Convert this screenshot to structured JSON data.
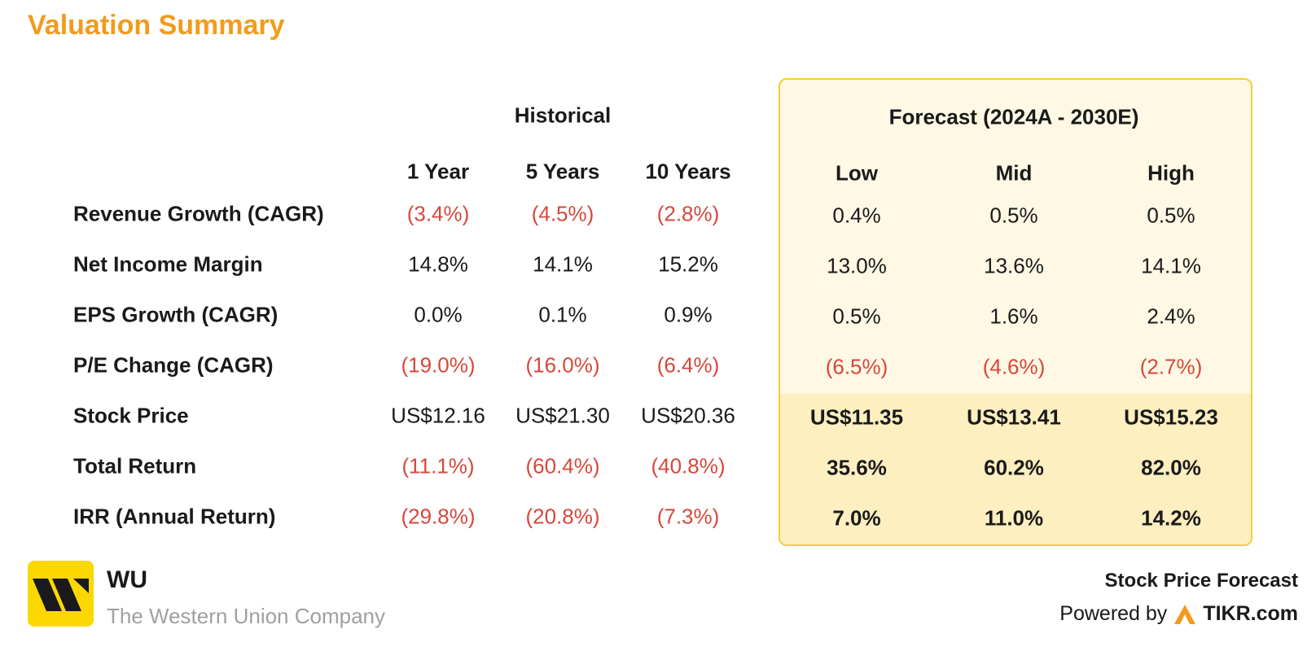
{
  "title": "Valuation Summary",
  "historical": {
    "heading": "Historical",
    "columns": [
      "1 Year",
      "5 Years",
      "10 Years"
    ]
  },
  "forecast": {
    "heading": "Forecast (2024A - 2030E)",
    "columns": [
      "Low",
      "Mid",
      "High"
    ]
  },
  "rows": [
    {
      "label": "Revenue Growth (CAGR)",
      "hist": [
        "(3.4%)",
        "(4.5%)",
        "(2.8%)"
      ],
      "fc": [
        "0.4%",
        "0.5%",
        "0.5%"
      ]
    },
    {
      "label": "Net Income Margin",
      "hist": [
        "14.8%",
        "14.1%",
        "15.2%"
      ],
      "fc": [
        "13.0%",
        "13.6%",
        "14.1%"
      ]
    },
    {
      "label": "EPS Growth (CAGR)",
      "hist": [
        "0.0%",
        "0.1%",
        "0.9%"
      ],
      "fc": [
        "0.5%",
        "1.6%",
        "2.4%"
      ]
    },
    {
      "label": "P/E Change (CAGR)",
      "hist": [
        "(19.0%)",
        "(16.0%)",
        "(6.4%)"
      ],
      "fc": [
        "(6.5%)",
        "(4.6%)",
        "(2.7%)"
      ]
    },
    {
      "label": "Stock Price",
      "hist": [
        "US$12.16",
        "US$21.30",
        "US$20.36"
      ],
      "fc": [
        "US$11.35",
        "US$13.41",
        "US$15.23"
      ]
    },
    {
      "label": "Total Return",
      "hist": [
        "(11.1%)",
        "(60.4%)",
        "(40.8%)"
      ],
      "fc": [
        "35.6%",
        "60.2%",
        "82.0%"
      ]
    },
    {
      "label": "IRR (Annual Return)",
      "hist": [
        "(29.8%)",
        "(20.8%)",
        "(7.3%)"
      ],
      "fc": [
        "7.0%",
        "11.0%",
        "14.2%"
      ]
    }
  ],
  "footer": {
    "ticker": "WU",
    "company": "The Western Union Company",
    "forecast_label": "Stock Price Forecast",
    "powered_by": "Powered by",
    "brand": "TIKR.com"
  },
  "colors": {
    "accent": "#f29b1b",
    "negative": "#d5483c",
    "forecast_bg": "#fef8e4",
    "forecast_border": "#f3cc3c",
    "logo_bg": "#fbd800"
  }
}
